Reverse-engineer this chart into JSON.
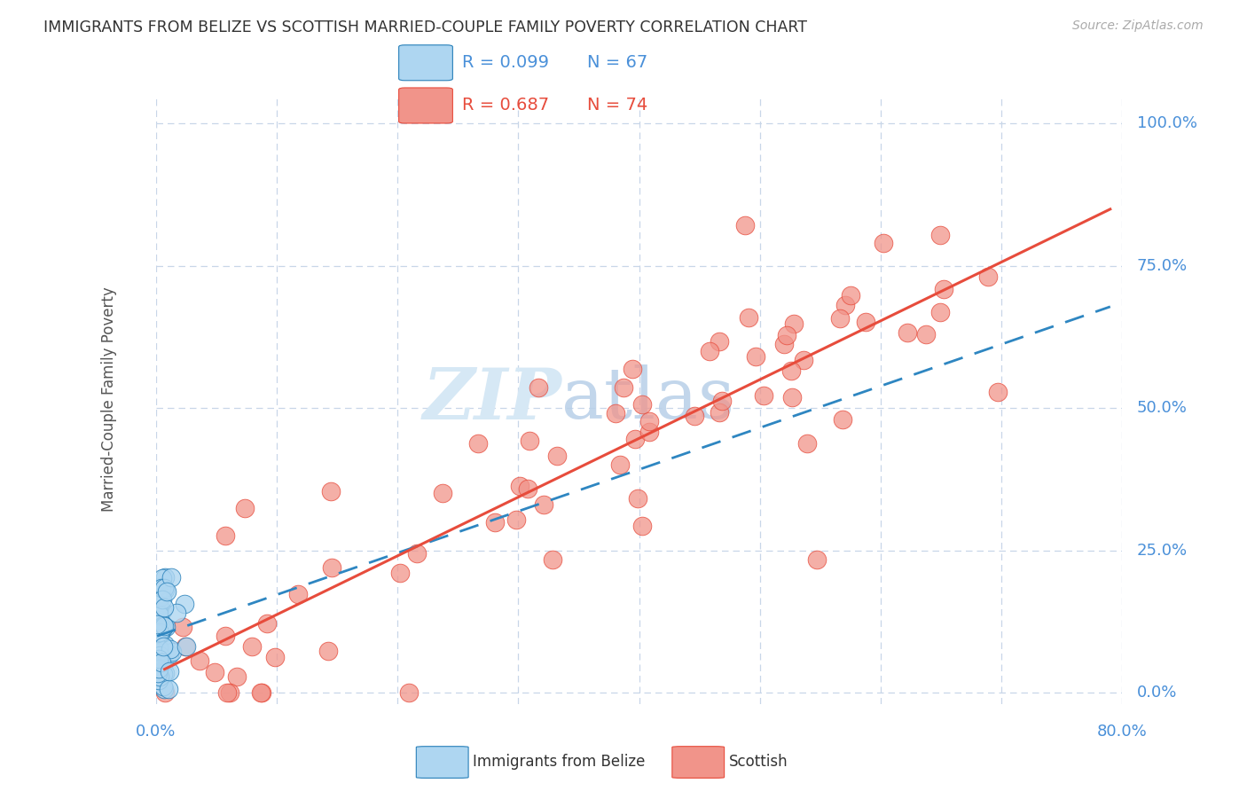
{
  "title": "IMMIGRANTS FROM BELIZE VS SCOTTISH MARRIED-COUPLE FAMILY POVERTY CORRELATION CHART",
  "source": "Source: ZipAtlas.com",
  "ylabel": "Married-Couple Family Poverty",
  "xlim": [
    0.0,
    0.8
  ],
  "ylim": [
    -0.02,
    1.05
  ],
  "xticks": [
    0.0,
    0.1,
    0.2,
    0.3,
    0.4,
    0.5,
    0.6,
    0.7,
    0.8
  ],
  "yticks": [
    0.0,
    0.25,
    0.5,
    0.75,
    1.0
  ],
  "ytick_labels": [
    "0.0%",
    "25.0%",
    "50.0%",
    "75.0%",
    "100.0%"
  ],
  "legend_blue_r": "R = 0.099",
  "legend_blue_n": "N = 67",
  "legend_pink_r": "R = 0.687",
  "legend_pink_n": "N = 74",
  "blue_scatter_color": "#aed6f1",
  "blue_edge_color": "#2980b9",
  "blue_line_color": "#2e86c1",
  "pink_scatter_color": "#f1948a",
  "pink_edge_color": "#e74c3c",
  "pink_line_color": "#e74c3c",
  "background_color": "#ffffff",
  "grid_color": "#c8d6e8",
  "title_color": "#333333",
  "right_axis_color": "#4a90d9",
  "ylabel_color": "#555555",
  "watermark_color": "#d6e8f5",
  "legend_border_color": "#c0cfe0"
}
